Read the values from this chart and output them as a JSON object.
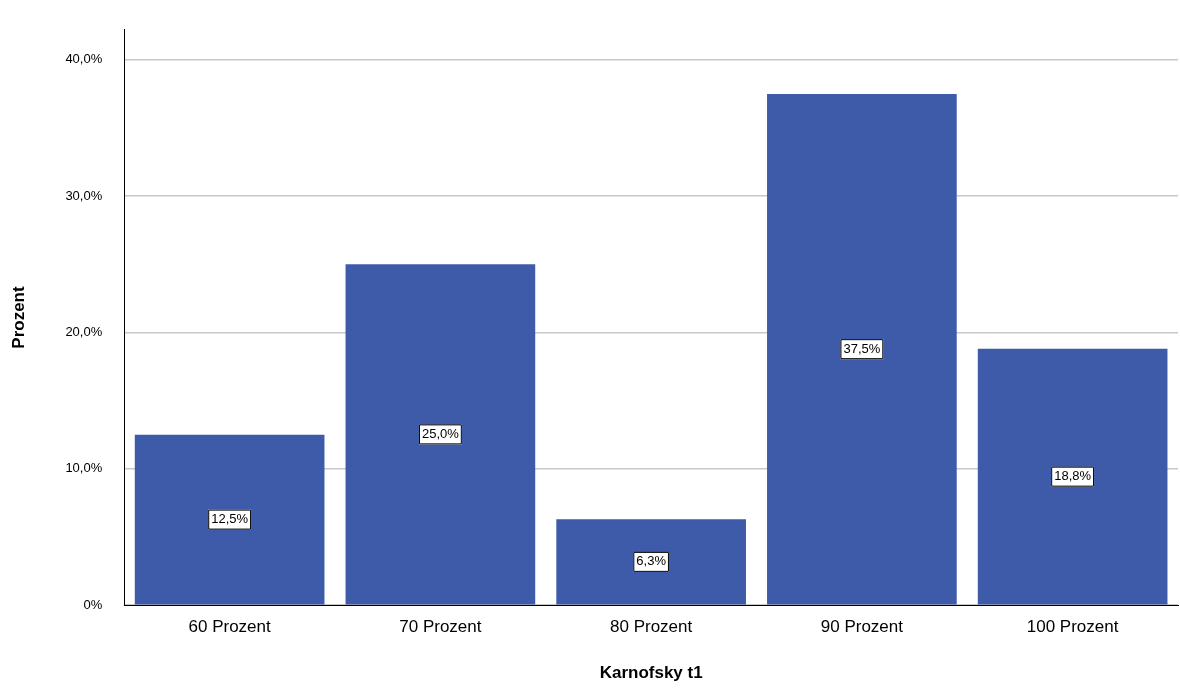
{
  "chart_data": {
    "type": "bar",
    "xlabel": "Karnofsky t1",
    "ylabel": "Prozent",
    "categories": [
      "60 Prozent",
      "70 Prozent",
      "80 Prozent",
      "90 Prozent",
      "100 Prozent"
    ],
    "values": [
      12.5,
      25.0,
      6.3,
      37.5,
      18.8
    ],
    "value_labels": [
      "12,5%",
      "25,0%",
      "6,3%",
      "37,5%",
      "18,8%"
    ],
    "color": "#3e5ba9",
    "ylim": [
      0,
      42.2
    ],
    "yticks": [
      {
        "value": 0,
        "label": "0%"
      },
      {
        "value": 10,
        "label": "10,0%"
      },
      {
        "value": 20,
        "label": "20,0%"
      },
      {
        "value": 30,
        "label": "30,0%"
      },
      {
        "value": 40,
        "label": "40,0%"
      }
    ],
    "grid": "y"
  }
}
